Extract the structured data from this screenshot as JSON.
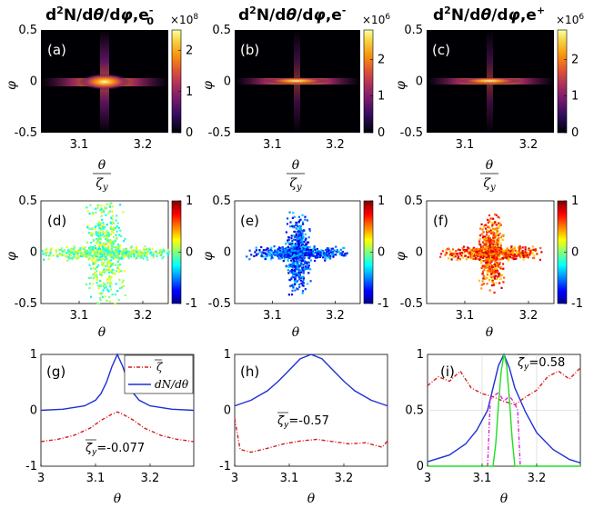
{
  "titles": {
    "a": {
      "base": "d",
      "sup1": "2",
      "mid": "N/d",
      "theta": "θ",
      "slash": "/d",
      "phi": "φ",
      "comma": ",e",
      "sub": "0",
      "sup2": "-"
    },
    "b": {
      "base": "d",
      "sup1": "2",
      "mid": "N/d",
      "theta": "θ",
      "slash": "/d",
      "phi": "φ",
      "comma": ",e",
      "sup2": "-"
    },
    "c": {
      "base": "d",
      "sup1": "2",
      "mid": "N/d",
      "theta": "θ",
      "slash": "/d",
      "phi": "φ",
      "comma": ",e",
      "sup2": "+"
    }
  },
  "panel_labels": {
    "a": "(a)",
    "b": "(b)",
    "c": "(c)",
    "d": "(d)",
    "e": "(e)",
    "f": "(f)",
    "g": "(g)",
    "h": "(h)",
    "i": "(i)"
  },
  "colorbar_exponents": {
    "a": "×10",
    "a_exp": "8",
    "b": "×10",
    "b_exp": "6",
    "c": "×10",
    "c_exp": "6"
  },
  "axis_labels": {
    "phi": "φ",
    "theta": "θ",
    "zeta_y_over": "ζ",
    "zeta_y_sub": "y"
  },
  "colors": {
    "blue_line": "#1f2fd6",
    "red_line": "#d62020",
    "green_line": "#22dd22",
    "magenta_line": "#e020e0"
  },
  "chart_data": [
    {
      "type": "heatmap",
      "panel": "a",
      "xlim": [
        3.04,
        3.24
      ],
      "ylim": [
        -0.5,
        0.5
      ],
      "xticks": [
        "3.1",
        "3.2"
      ],
      "yticks": [
        "0.5",
        "0",
        "-0.5"
      ],
      "colorbar": {
        "min": 0,
        "max": 2.5,
        "ticks": [
          "2",
          "1",
          "0"
        ],
        "colormap": "inferno"
      }
    },
    {
      "type": "heatmap",
      "panel": "b",
      "xlim": [
        3.04,
        3.24
      ],
      "ylim": [
        -0.5,
        0.5
      ],
      "xticks": [
        "3.1",
        "3.2"
      ],
      "yticks": [
        "0.5",
        "0",
        "-0.5"
      ],
      "colorbar": {
        "min": 0,
        "max": 2.8,
        "ticks": [
          "2",
          "1",
          "0"
        ],
        "colormap": "inferno"
      }
    },
    {
      "type": "heatmap",
      "panel": "c",
      "xlim": [
        3.04,
        3.24
      ],
      "ylim": [
        -0.5,
        0.5
      ],
      "xticks": [
        "3.1",
        "3.2"
      ],
      "yticks": [
        "0.5",
        "0",
        "-0.5"
      ],
      "colorbar": {
        "min": 0,
        "max": 2.8,
        "ticks": [
          "2",
          "1",
          "0"
        ],
        "colormap": "inferno"
      }
    },
    {
      "type": "heatmap",
      "panel": "d",
      "xlim": [
        3.04,
        3.24
      ],
      "ylim": [
        -0.5,
        0.5
      ],
      "xticks": [
        "3.1",
        "3.2"
      ],
      "yticks": [
        "0.5",
        "0",
        "-0.5"
      ],
      "colorbar": {
        "min": -1,
        "max": 1,
        "ticks": [
          "1",
          "0",
          "-1"
        ],
        "colormap": "jet"
      },
      "dominant_value": 0.0
    },
    {
      "type": "heatmap",
      "panel": "e",
      "xlim": [
        3.04,
        3.24
      ],
      "ylim": [
        -0.5,
        0.5
      ],
      "xticks": [
        "3.1",
        "3.2"
      ],
      "yticks": [
        "0.5",
        "0",
        "-0.5"
      ],
      "colorbar": {
        "min": -1,
        "max": 1,
        "ticks": [
          "1",
          "0",
          "-1"
        ],
        "colormap": "jet"
      },
      "dominant_value": -0.6
    },
    {
      "type": "heatmap",
      "panel": "f",
      "xlim": [
        3.04,
        3.24
      ],
      "ylim": [
        -0.5,
        0.5
      ],
      "xticks": [
        "3.1",
        "3.2"
      ],
      "yticks": [
        "0.5",
        "0",
        "-0.5"
      ],
      "colorbar": {
        "min": -1,
        "max": 1,
        "ticks": [
          "1",
          "0",
          "-1"
        ],
        "colormap": "jet"
      },
      "dominant_value": 0.6
    },
    {
      "type": "line",
      "panel": "g",
      "xlim": [
        3.0,
        3.28
      ],
      "ylim": [
        -1,
        1
      ],
      "xticks": [
        "3",
        "3.1",
        "3.2"
      ],
      "yticks": [
        "1",
        "0",
        "-1"
      ],
      "legend": {
        "entries": [
          "ζ",
          "dN/dθ"
        ],
        "placement": "top-right"
      },
      "annotation": {
        "prefix": "ζ",
        "sub": "y",
        "value": "=-0.077"
      },
      "series": [
        {
          "name": "dN/dθ",
          "color": "blue",
          "x": [
            3.0,
            3.04,
            3.08,
            3.1,
            3.11,
            3.12,
            3.13,
            3.14,
            3.15,
            3.16,
            3.17,
            3.18,
            3.2,
            3.24,
            3.28
          ],
          "y": [
            0.0,
            0.02,
            0.08,
            0.18,
            0.3,
            0.5,
            0.78,
            1.0,
            0.78,
            0.5,
            0.3,
            0.18,
            0.08,
            0.02,
            0.0
          ]
        },
        {
          "name": "ζ",
          "color": "red",
          "x": [
            3.0,
            3.03,
            3.06,
            3.09,
            3.11,
            3.13,
            3.14,
            3.15,
            3.17,
            3.19,
            3.22,
            3.25,
            3.28
          ],
          "y": [
            -0.56,
            -0.52,
            -0.45,
            -0.32,
            -0.18,
            -0.07,
            -0.03,
            -0.07,
            -0.18,
            -0.32,
            -0.45,
            -0.52,
            -0.56
          ]
        }
      ]
    },
    {
      "type": "line",
      "panel": "h",
      "xlim": [
        3.0,
        3.28
      ],
      "ylim": [
        -1,
        1
      ],
      "xticks": [
        "3",
        "3.1",
        "3.2"
      ],
      "yticks": [
        "1",
        "0",
        "-1"
      ],
      "annotation": {
        "prefix": "ζ",
        "sub": "y",
        "value": "=-0.57"
      },
      "series": [
        {
          "name": "dN/dθ",
          "color": "blue",
          "x": [
            3.0,
            3.03,
            3.06,
            3.08,
            3.1,
            3.12,
            3.14,
            3.16,
            3.18,
            3.2,
            3.22,
            3.25,
            3.28
          ],
          "y": [
            0.08,
            0.18,
            0.35,
            0.52,
            0.72,
            0.92,
            1.0,
            0.92,
            0.72,
            0.52,
            0.35,
            0.18,
            0.08
          ]
        },
        {
          "name": "ζ",
          "color": "red",
          "x": [
            3.0,
            3.01,
            3.03,
            3.06,
            3.09,
            3.12,
            3.15,
            3.18,
            3.21,
            3.24,
            3.27,
            3.28
          ],
          "y": [
            -0.15,
            -0.7,
            -0.75,
            -0.68,
            -0.6,
            -0.55,
            -0.52,
            -0.56,
            -0.6,
            -0.58,
            -0.66,
            -0.55
          ]
        }
      ]
    },
    {
      "type": "line",
      "panel": "i",
      "xlim": [
        3.0,
        3.28
      ],
      "ylim": [
        0,
        1
      ],
      "xticks": [
        "3",
        "3.1",
        "3.2"
      ],
      "yticks": [
        "1",
        "0.5",
        "0"
      ],
      "annotation": {
        "prefix": "ζ",
        "sub": "y",
        "value": "=0.58"
      },
      "series": [
        {
          "name": "dN/dθ",
          "color": "blue",
          "x": [
            3.0,
            3.04,
            3.07,
            3.09,
            3.11,
            3.12,
            3.13,
            3.14,
            3.15,
            3.16,
            3.18,
            3.2,
            3.23,
            3.26,
            3.28
          ],
          "y": [
            0.04,
            0.1,
            0.2,
            0.32,
            0.5,
            0.7,
            0.9,
            1.0,
            0.88,
            0.7,
            0.48,
            0.3,
            0.15,
            0.06,
            0.03
          ]
        },
        {
          "name": "ζ",
          "color": "red",
          "x": [
            3.0,
            3.02,
            3.04,
            3.06,
            3.08,
            3.1,
            3.12,
            3.14,
            3.16,
            3.18,
            3.2,
            3.22,
            3.24,
            3.26,
            3.28
          ],
          "y": [
            0.72,
            0.8,
            0.76,
            0.85,
            0.7,
            0.65,
            0.62,
            0.58,
            0.55,
            0.62,
            0.68,
            0.8,
            0.85,
            0.78,
            0.88
          ]
        },
        {
          "name": "green",
          "color": "green",
          "x": [
            3.0,
            3.12,
            3.125,
            3.13,
            3.135,
            3.14,
            3.145,
            3.15,
            3.155,
            3.16,
            3.28
          ],
          "y": [
            0.0,
            0.0,
            0.2,
            0.55,
            0.85,
            1.0,
            0.9,
            0.6,
            0.25,
            0.0,
            0.0
          ]
        },
        {
          "name": "magenta",
          "color": "magenta",
          "x": [
            3.11,
            3.115,
            3.12,
            3.13,
            3.14,
            3.15,
            3.16,
            3.165,
            3.17
          ],
          "y": [
            0.0,
            0.6,
            0.62,
            0.66,
            0.58,
            0.63,
            0.56,
            0.5,
            0.0
          ]
        }
      ]
    }
  ]
}
